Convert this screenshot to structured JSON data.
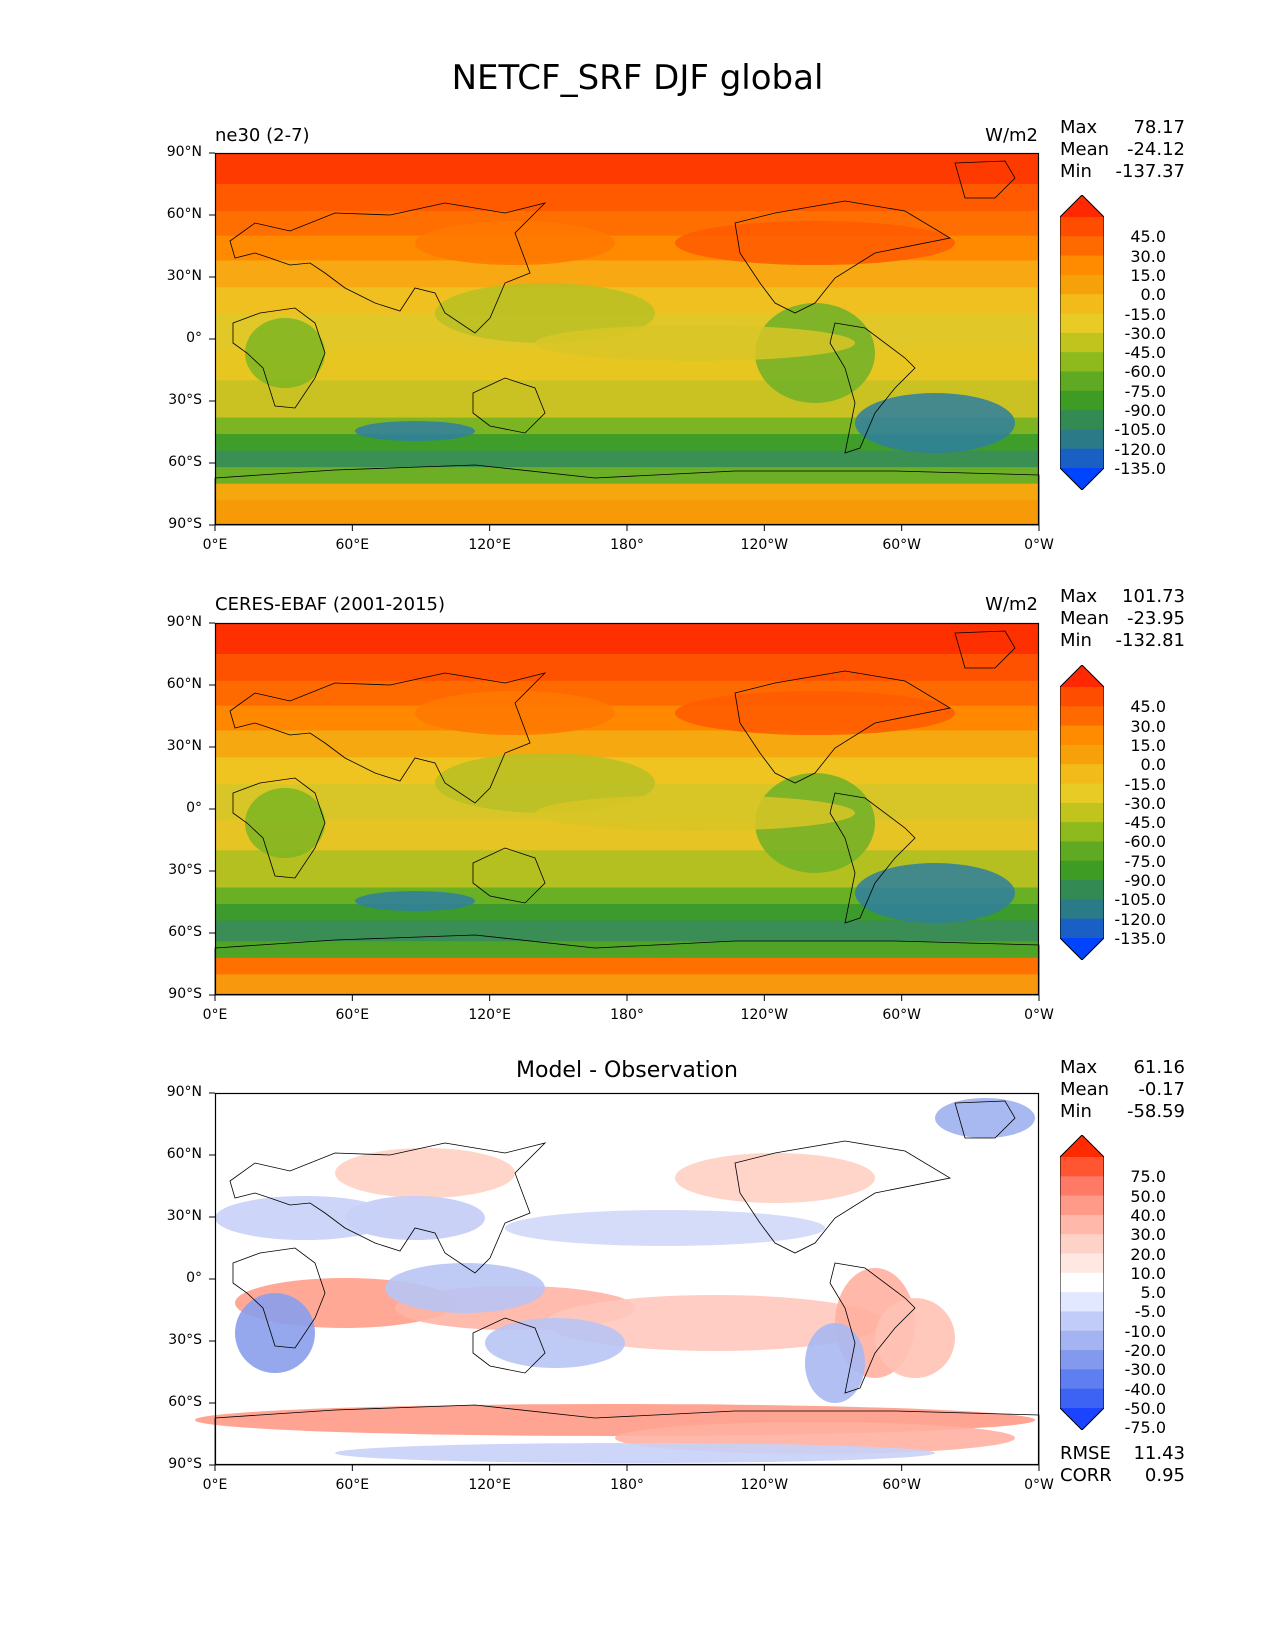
{
  "title": "NETCF_SRF DJF global",
  "panels": [
    {
      "title": "ne30 (2-7)",
      "title_position": "left",
      "units": "W/m2",
      "stats": {
        "max_label": "Max",
        "max": "78.17",
        "mean_label": "Mean",
        "mean": "-24.12",
        "min_label": "Min",
        "min": "-137.37"
      },
      "colorbar": {
        "labels": [
          "45.0",
          "30.0",
          "15.0",
          "0.0",
          "-15.0",
          "-30.0",
          "-45.0",
          "-60.0",
          "-75.0",
          "-90.0",
          "-105.0",
          "-120.0",
          "-135.0"
        ],
        "colors": [
          "#ff2800",
          "#ff4d00",
          "#ff6a00",
          "#ff8c00",
          "#f7a10a",
          "#f2bb1a",
          "#e8cc25",
          "#c2c41e",
          "#8fba1e",
          "#5faa22",
          "#3e9c25",
          "#338a52",
          "#2a7a88",
          "#1a5fc4",
          "#0044ff"
        ]
      }
    },
    {
      "title": "CERES-EBAF (2001-2015)",
      "title_position": "left",
      "units": "W/m2",
      "stats": {
        "max_label": "Max",
        "max": "101.73",
        "mean_label": "Mean",
        "mean": "-23.95",
        "min_label": "Min",
        "min": "-132.81"
      },
      "colorbar": {
        "labels": [
          "45.0",
          "30.0",
          "15.0",
          "0.0",
          "-15.0",
          "-30.0",
          "-45.0",
          "-60.0",
          "-75.0",
          "-90.0",
          "-105.0",
          "-120.0",
          "-135.0"
        ],
        "colors": [
          "#ff2800",
          "#ff4d00",
          "#ff6a00",
          "#ff8c00",
          "#f7a10a",
          "#f2bb1a",
          "#e8cc25",
          "#c2c41e",
          "#8fba1e",
          "#5faa22",
          "#3e9c25",
          "#338a52",
          "#2a7a88",
          "#1a5fc4",
          "#0044ff"
        ]
      }
    },
    {
      "title": "Model - Observation",
      "title_position": "center",
      "units": "",
      "stats": {
        "max_label": "Max",
        "max": "61.16",
        "mean_label": "Mean",
        "mean": "-0.17",
        "min_label": "Min",
        "min": "-58.59"
      },
      "extra_stats": {
        "rmse_label": "RMSE",
        "rmse": "11.43",
        "corr_label": "CORR",
        "corr": "0.95"
      },
      "colorbar": {
        "labels": [
          "75.0",
          "50.0",
          "40.0",
          "30.0",
          "20.0",
          "10.0",
          "5.0",
          "-5.0",
          "-10.0",
          "-20.0",
          "-30.0",
          "-40.0",
          "-50.0",
          "-75.0"
        ],
        "colors": [
          "#ff2a00",
          "#ff5533",
          "#ff7a66",
          "#ff9988",
          "#ffb8aa",
          "#ffd2c8",
          "#ffe8e2",
          "#ffffff",
          "#e2e8ff",
          "#c2ccf8",
          "#a4b4f2",
          "#8399ee",
          "#5f7ef0",
          "#3c63f4",
          "#1a44ff"
        ]
      }
    }
  ],
  "axes": {
    "lat_ticks": [
      "90°N",
      "60°N",
      "30°N",
      "0°",
      "30°S",
      "60°S",
      "90°S"
    ],
    "lon_ticks": [
      "0°E",
      "60°E",
      "120°E",
      "180°",
      "120°W",
      "60°W",
      "0°W"
    ]
  }
}
